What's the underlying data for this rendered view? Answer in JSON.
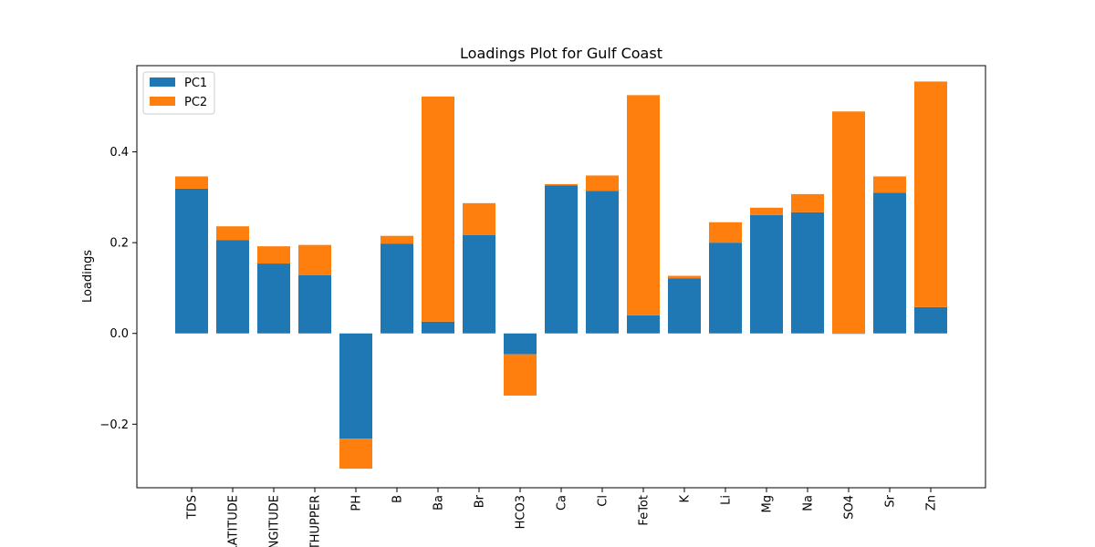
{
  "chart_data": {
    "type": "bar",
    "stacked": true,
    "title": "Loadings Plot for Gulf Coast",
    "xlabel": "",
    "ylabel": "Loadings",
    "ylim": [
      -0.34,
      0.59
    ],
    "yticks": [
      -0.2,
      0.0,
      0.2,
      0.4
    ],
    "ytick_labels": [
      "−0.2",
      "0.0",
      "0.2",
      "0.4"
    ],
    "grid": false,
    "legend_position": "top-left",
    "categories": [
      "TDS",
      "LATITUDE",
      "LONGITUDE",
      "DEPTHUPPER",
      "PH",
      "B",
      "Ba",
      "Br",
      "HCO3",
      "Ca",
      "Cl",
      "FeTot",
      "K",
      "Li",
      "Mg",
      "Na",
      "SO4",
      "Sr",
      "Zn"
    ],
    "series": [
      {
        "name": "PC1",
        "color": "#1f77b4",
        "base": [
          0,
          0,
          0,
          0,
          0,
          0,
          0,
          0,
          0,
          0,
          0,
          0,
          0,
          0,
          0,
          0,
          0,
          0,
          0
        ],
        "values": [
          0.319,
          0.206,
          0.154,
          0.128,
          -0.232,
          0.198,
          0.026,
          0.217,
          -0.046,
          0.326,
          0.314,
          0.04,
          0.121,
          0.2,
          0.261,
          0.267,
          0.0,
          0.31,
          0.058
        ]
      },
      {
        "name": "PC2",
        "color": "#ff7f0e",
        "base": [
          0.319,
          0.206,
          0.154,
          0.128,
          -0.232,
          0.198,
          0.026,
          0.217,
          -0.046,
          0.326,
          0.314,
          0.04,
          0.121,
          0.2,
          0.261,
          0.267,
          0.0,
          0.31,
          0.058
        ],
        "values": [
          0.027,
          0.03,
          0.038,
          0.067,
          -0.066,
          0.017,
          0.496,
          0.07,
          -0.091,
          0.003,
          0.034,
          0.485,
          0.006,
          0.045,
          0.016,
          0.04,
          0.489,
          0.036,
          0.497
        ]
      }
    ]
  }
}
